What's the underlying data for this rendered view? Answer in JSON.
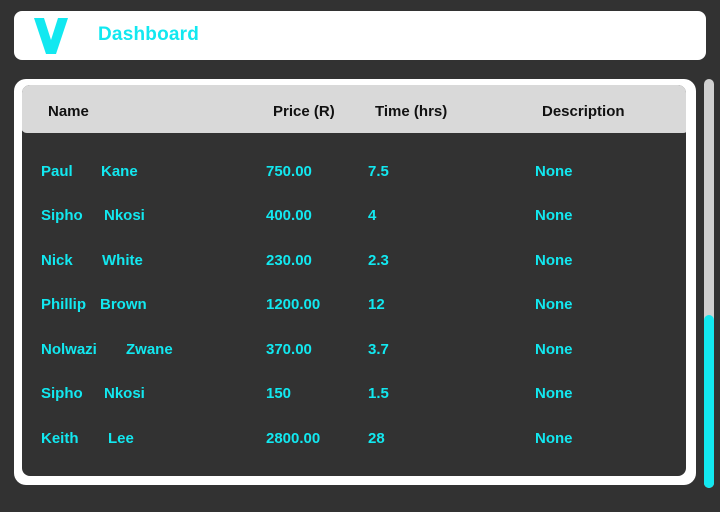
{
  "header": {
    "logo_letter": "V",
    "title": "Dashboard"
  },
  "colors": {
    "accent": "#12e8f0",
    "background": "#323232",
    "header_bg": "#ffffff",
    "table_header_bg": "#d9d9d9"
  },
  "table": {
    "columns": [
      "Name",
      "Price (R)",
      "Time (hrs)",
      "Description"
    ],
    "rows": [
      {
        "first": "Paul",
        "last": "Kane",
        "price": "750.00",
        "time": "7.5",
        "description": "None"
      },
      {
        "first": "Sipho",
        "last": "Nkosi",
        "price": "400.00",
        "time": "4",
        "description": "None"
      },
      {
        "first": "Nick",
        "last": "White",
        "price": "230.00",
        "time": "2.3",
        "description": "None"
      },
      {
        "first": "Phillip",
        "last": "Brown",
        "price": "1200.00",
        "time": "12",
        "description": "None"
      },
      {
        "first": "Nolwazi",
        "last": "Zwane",
        "price": "370.00",
        "time": "3.7",
        "description": "None"
      },
      {
        "first": "Sipho",
        "last": "Nkosi",
        "price": "150",
        "time": "1.5",
        "description": "None"
      },
      {
        "first": "Keith",
        "last": "Lee",
        "price": "2800.00",
        "time": "28",
        "description": "None"
      }
    ]
  },
  "scrollbar": {
    "position_fraction": 0.58
  }
}
